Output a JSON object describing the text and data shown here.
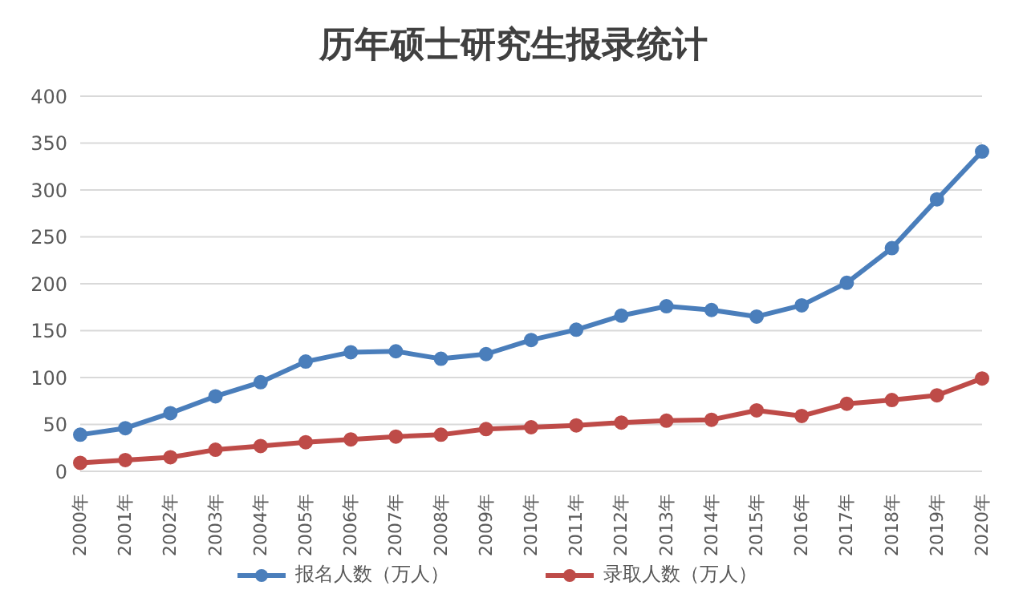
{
  "chart_data": {
    "type": "line",
    "title": "历年硕士研究生报录统计",
    "categories": [
      "2000年",
      "2001年",
      "2002年",
      "2003年",
      "2004年",
      "2005年",
      "2006年",
      "2007年",
      "2008年",
      "2009年",
      "2010年",
      "2011年",
      "2012年",
      "2013年",
      "2014年",
      "2015年",
      "2016年",
      "2017年",
      "2018年",
      "2019年",
      "2020年"
    ],
    "series": [
      {
        "name": "报名人数（万人）",
        "color": "#4a7ebb",
        "values": [
          39,
          46,
          62,
          80,
          95,
          117,
          127,
          128,
          120,
          125,
          140,
          151,
          166,
          176,
          172,
          165,
          177,
          201,
          238,
          290,
          341
        ]
      },
      {
        "name": "录取人数（万人）",
        "color": "#be4b48",
        "values": [
          9,
          12,
          15,
          23,
          27,
          31,
          34,
          37,
          39,
          45,
          47,
          49,
          52,
          54,
          55,
          65,
          59,
          72,
          76,
          81,
          99
        ]
      }
    ],
    "ylim": [
      0,
      400
    ],
    "yticks": [
      0,
      50,
      100,
      150,
      200,
      250,
      300,
      350,
      400
    ],
    "grid": "y",
    "legend": "bottom",
    "marker": "circle",
    "line_style": "solid"
  }
}
